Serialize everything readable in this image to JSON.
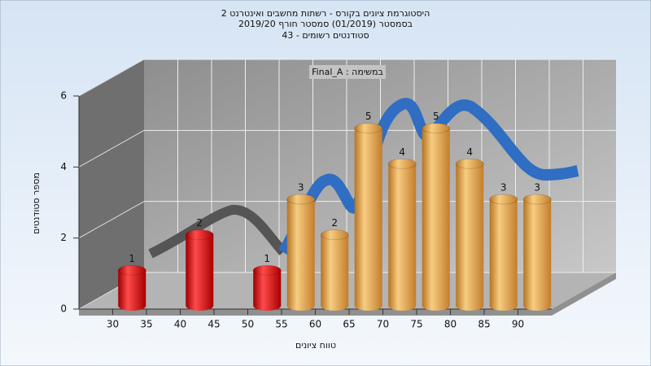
{
  "chart_data": {
    "type": "histogram",
    "title": [
      "היסטוגרמת ציונים בקורס - רשתות מחשבים ואינטרנט 2",
      "בסמסטר (01/2019)  סמסטר חורף 2019/20",
      "סטודנטים רשומים - 43"
    ],
    "annotation": "במשימה : Final_A",
    "xlabel": "טווח ציונים",
    "ylabel": "מספר סטודנטים",
    "bins": [
      30,
      35,
      40,
      45,
      50,
      55,
      60,
      65,
      70,
      75,
      80,
      85,
      90,
      95
    ],
    "values": [
      1,
      0,
      2,
      0,
      1,
      3,
      2,
      5,
      4,
      5,
      4,
      3,
      3
    ],
    "colors": [
      "red",
      "red",
      "red",
      "red",
      "red",
      "gold",
      "gold",
      "gold",
      "gold",
      "gold",
      "gold",
      "gold",
      "gold"
    ],
    "xlim": [
      25,
      95
    ],
    "xticks": [
      30,
      35,
      40,
      45,
      50,
      55,
      60,
      65,
      70,
      75,
      80,
      85,
      90
    ],
    "ylim": [
      0,
      6
    ],
    "yticks": [
      0,
      2,
      4,
      6
    ],
    "grid": true
  }
}
